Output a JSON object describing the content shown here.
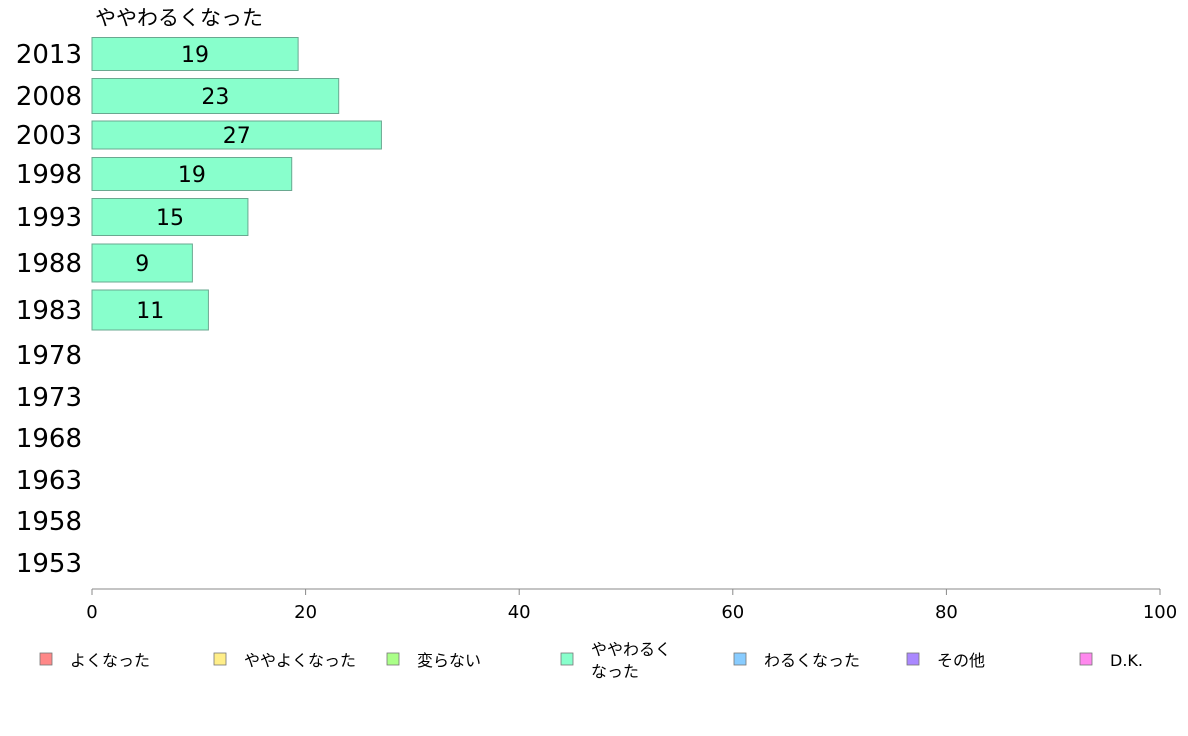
{
  "chart_data": {
    "type": "bar",
    "orientation": "horizontal",
    "title": "ややわるくなった",
    "categories": [
      "2013",
      "2008",
      "2003",
      "1998",
      "1993",
      "1988",
      "1983",
      "1978",
      "1973",
      "1968",
      "1963",
      "1958",
      "1953"
    ],
    "series": [
      {
        "name": "ややわるくなった",
        "color": "#88ffcc",
        "values": [
          19.3,
          23.1,
          27.1,
          18.7,
          14.6,
          9.4,
          10.9,
          null,
          null,
          null,
          null,
          null,
          null
        ],
        "labels": [
          "19",
          "23",
          "27",
          "19",
          "15",
          "9",
          "11",
          "",
          "",
          "",
          "",
          "",
          ""
        ]
      }
    ],
    "xlim": [
      0,
      100
    ],
    "xticks": [
      "0",
      "20",
      "40",
      "60",
      "80",
      "100"
    ],
    "xlabel": "",
    "ylabel": "",
    "grid": false,
    "legend": {
      "placement": "bottom",
      "items": [
        {
          "label": "よくなった",
          "color": "#ff8888"
        },
        {
          "label": "ややよくなった",
          "color": "#ffee88"
        },
        {
          "label": "変らない",
          "color": "#aaff88"
        },
        {
          "label": "ややわるくなった",
          "color": "#88ffcc"
        },
        {
          "label": "わるくなった",
          "color": "#88ccff"
        },
        {
          "label": "その他",
          "color": "#aa88ff"
        },
        {
          "label": "D.K.",
          "color": "#ff88ee"
        }
      ]
    }
  }
}
